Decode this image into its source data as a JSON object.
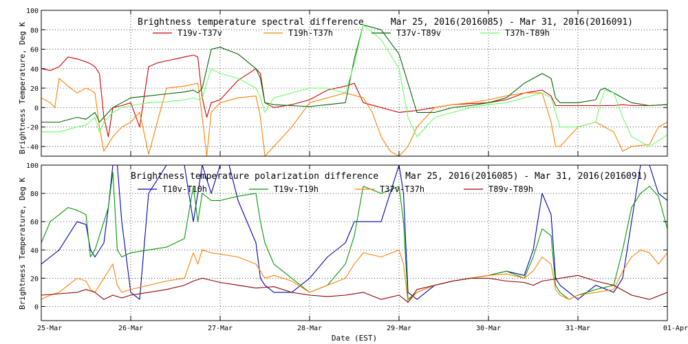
{
  "chart_data": [
    {
      "type": "line",
      "title": "Brightness temperature spectral difference     Mar 25, 2016(2016085) - Mar 31, 2016(2016091)",
      "ylabel": "Brightness Temperature, Deg K",
      "xlabel": "",
      "xlim": [
        0,
        7
      ],
      "ylim": [
        -50,
        100
      ],
      "yticks": [
        -40,
        -20,
        0,
        20,
        40,
        60,
        80,
        100
      ],
      "grid": true,
      "legend": "top",
      "series": [
        {
          "name": "T19v-T37v",
          "color": "#cc0000",
          "x": [
            0,
            0.1,
            0.2,
            0.3,
            0.4,
            0.5,
            0.55,
            0.6,
            0.65,
            0.7,
            0.75,
            0.8,
            0.9,
            1.0,
            1.1,
            1.2,
            1.3,
            1.4,
            1.5,
            1.6,
            1.7,
            1.75,
            1.8,
            1.85,
            1.9,
            2.0,
            2.2,
            2.4,
            2.45,
            2.5,
            2.6,
            2.8,
            3.0,
            3.2,
            3.4,
            3.5,
            3.6,
            3.8,
            4.0,
            4.2,
            4.4,
            4.6,
            4.8,
            5.0,
            5.2,
            5.4,
            5.6,
            5.7,
            5.75,
            5.8,
            6.0,
            6.2,
            6.4,
            6.5,
            6.6,
            6.8,
            7.0
          ],
          "y": [
            40,
            38,
            42,
            52,
            50,
            47,
            45,
            42,
            35,
            -10,
            -30,
            0,
            2,
            5,
            -20,
            42,
            46,
            48,
            50,
            52,
            54,
            52,
            10,
            -10,
            5,
            8,
            28,
            40,
            35,
            5,
            0,
            3,
            8,
            18,
            22,
            25,
            5,
            0,
            -5,
            -3,
            0,
            3,
            4,
            5,
            8,
            15,
            18,
            12,
            2,
            2,
            2,
            2,
            2,
            3,
            2,
            2,
            3
          ]
        },
        {
          "name": "T19h-T37h",
          "color": "#ff8000",
          "x": [
            0,
            0.1,
            0.15,
            0.2,
            0.3,
            0.4,
            0.5,
            0.55,
            0.6,
            0.65,
            0.7,
            0.8,
            0.9,
            1.0,
            1.1,
            1.2,
            1.4,
            1.6,
            1.7,
            1.75,
            1.8,
            1.85,
            1.9,
            2.0,
            2.2,
            2.4,
            2.45,
            2.5,
            2.6,
            2.7,
            2.8,
            3.0,
            3.2,
            3.4,
            3.6,
            3.7,
            3.8,
            3.9,
            4.0,
            4.1,
            4.2,
            4.4,
            4.6,
            4.8,
            5.0,
            5.2,
            5.4,
            5.6,
            5.7,
            5.75,
            5.8,
            6.0,
            6.2,
            6.4,
            6.5,
            6.6,
            6.8,
            6.9,
            7.0
          ],
          "y": [
            10,
            5,
            0,
            30,
            22,
            15,
            20,
            18,
            15,
            -20,
            -45,
            -30,
            -20,
            -15,
            -5,
            -48,
            20,
            22,
            24,
            25,
            -10,
            -50,
            -5,
            5,
            10,
            12,
            -10,
            -50,
            -40,
            -30,
            -20,
            5,
            10,
            15,
            10,
            -5,
            -30,
            -45,
            -50,
            -40,
            -20,
            0,
            3,
            5,
            8,
            12,
            15,
            15,
            -15,
            -40,
            -40,
            -20,
            -15,
            -25,
            -45,
            -40,
            -38,
            -20,
            -15
          ]
        },
        {
          "name": "T37v-T89v",
          "color": "#006400",
          "x": [
            0,
            0.2,
            0.4,
            0.5,
            0.6,
            0.65,
            0.7,
            0.8,
            0.9,
            1.0,
            1.2,
            1.4,
            1.6,
            1.7,
            1.75,
            1.8,
            1.9,
            2.0,
            2.2,
            2.4,
            2.45,
            2.5,
            2.6,
            2.8,
            3.0,
            3.2,
            3.4,
            3.5,
            3.6,
            3.8,
            4.0,
            4.2,
            4.4,
            4.6,
            4.8,
            5.0,
            5.2,
            5.4,
            5.6,
            5.7,
            5.75,
            5.8,
            6.0,
            6.2,
            6.25,
            6.3,
            6.4,
            6.6,
            6.8,
            7.0
          ],
          "y": [
            -15,
            -15,
            -10,
            -12,
            -5,
            -15,
            -10,
            0,
            5,
            10,
            12,
            14,
            16,
            18,
            15,
            20,
            60,
            62,
            55,
            40,
            30,
            5,
            3,
            2,
            1,
            3,
            5,
            50,
            85,
            80,
            55,
            -5,
            -5,
            0,
            2,
            5,
            10,
            25,
            35,
            30,
            10,
            5,
            5,
            8,
            18,
            20,
            15,
            5,
            2,
            3
          ]
        },
        {
          "name": "T37h-T89h",
          "color": "#66ff66",
          "x": [
            0,
            0.2,
            0.4,
            0.5,
            0.6,
            0.65,
            0.7,
            0.8,
            0.9,
            1.0,
            1.2,
            1.4,
            1.6,
            1.7,
            1.75,
            1.8,
            1.9,
            2.0,
            2.2,
            2.4,
            2.45,
            2.5,
            2.6,
            2.8,
            3.0,
            3.2,
            3.4,
            3.5,
            3.6,
            3.8,
            4.0,
            4.1,
            4.2,
            4.4,
            4.6,
            4.8,
            5.0,
            5.2,
            5.4,
            5.6,
            5.7,
            5.75,
            5.8,
            6.0,
            6.2,
            6.25,
            6.3,
            6.4,
            6.5,
            6.6,
            6.8,
            7.0
          ],
          "y": [
            -25,
            -25,
            -20,
            -18,
            -10,
            -25,
            -15,
            -5,
            0,
            2,
            5,
            6,
            8,
            10,
            8,
            10,
            40,
            35,
            30,
            20,
            10,
            -5,
            10,
            15,
            20,
            20,
            15,
            45,
            85,
            70,
            40,
            -10,
            -30,
            -10,
            -5,
            0,
            3,
            5,
            10,
            15,
            10,
            -5,
            -20,
            -20,
            -15,
            5,
            18,
            15,
            -10,
            -30,
            -40,
            -28
          ]
        }
      ]
    },
    {
      "type": "line",
      "title": "Brightness temperature polarization difference     Mar 25, 2016(2016085) - Mar 31, 2016(2016091)",
      "ylabel": "Brightness Temperature, Deg K",
      "xlabel": "Date (EST)",
      "xlim": [
        0,
        7
      ],
      "ylim": [
        -10,
        100
      ],
      "yticks": [
        0,
        20,
        40,
        60,
        80,
        100
      ],
      "xticks": [
        "25-Mar",
        "26-Mar",
        "27-Mar",
        "28-Mar",
        "29-Mar",
        "30-Mar",
        "31-Mar",
        "01-Apr"
      ],
      "grid": true,
      "legend": "top",
      "series": [
        {
          "name": "T10v-T10h",
          "color": "#0000aa",
          "x": [
            0,
            0.1,
            0.2,
            0.3,
            0.4,
            0.5,
            0.55,
            0.6,
            0.7,
            0.75,
            0.8,
            0.85,
            0.9,
            1.0,
            1.1,
            1.2,
            1.4,
            1.6,
            1.7,
            1.75,
            1.8,
            1.9,
            2.0,
            2.1,
            2.2,
            2.4,
            2.45,
            2.5,
            2.6,
            2.8,
            3.0,
            3.2,
            3.4,
            3.5,
            3.6,
            3.8,
            4.0,
            4.05,
            4.1,
            4.2,
            4.4,
            4.6,
            4.8,
            5.0,
            5.2,
            5.4,
            5.5,
            5.6,
            5.7,
            5.75,
            5.8,
            5.9,
            6.0,
            6.2,
            6.4,
            6.5,
            6.6,
            6.7,
            6.8,
            6.9,
            7.0
          ],
          "y": [
            30,
            35,
            40,
            50,
            60,
            58,
            40,
            35,
            45,
            70,
            100,
            100,
            60,
            10,
            5,
            80,
            100,
            100,
            60,
            80,
            100,
            80,
            100,
            100,
            75,
            45,
            20,
            15,
            10,
            10,
            20,
            35,
            45,
            60,
            60,
            60,
            100,
            80,
            10,
            5,
            15,
            18,
            20,
            22,
            25,
            22,
            40,
            80,
            65,
            20,
            15,
            10,
            5,
            15,
            10,
            20,
            60,
            100,
            100,
            80,
            75
          ]
        },
        {
          "name": "T19v-T19h",
          "color": "#009900",
          "x": [
            0,
            0.1,
            0.2,
            0.3,
            0.4,
            0.5,
            0.55,
            0.6,
            0.7,
            0.75,
            0.8,
            0.85,
            0.9,
            1.0,
            1.2,
            1.4,
            1.6,
            1.7,
            1.75,
            1.8,
            1.9,
            2.0,
            2.2,
            2.4,
            2.45,
            2.5,
            2.6,
            2.8,
            3.0,
            3.2,
            3.4,
            3.5,
            3.6,
            3.8,
            4.0,
            4.05,
            4.1,
            4.2,
            4.4,
            4.6,
            4.8,
            5.0,
            5.2,
            5.4,
            5.5,
            5.6,
            5.7,
            5.75,
            5.8,
            5.9,
            6.0,
            6.2,
            6.4,
            6.5,
            6.6,
            6.7,
            6.8,
            6.9,
            7.0
          ],
          "y": [
            45,
            60,
            65,
            70,
            68,
            65,
            35,
            40,
            60,
            70,
            95,
            40,
            35,
            38,
            40,
            42,
            48,
            85,
            60,
            80,
            75,
            75,
            78,
            80,
            60,
            45,
            30,
            20,
            10,
            15,
            30,
            50,
            85,
            80,
            85,
            60,
            5,
            10,
            15,
            18,
            20,
            22,
            25,
            20,
            35,
            55,
            50,
            15,
            10,
            5,
            8,
            12,
            15,
            40,
            70,
            80,
            85,
            78,
            55
          ]
        },
        {
          "name": "T37v-T37h",
          "color": "#ff8000",
          "x": [
            0,
            0.1,
            0.2,
            0.3,
            0.4,
            0.5,
            0.55,
            0.6,
            0.7,
            0.75,
            0.8,
            0.85,
            0.9,
            1.0,
            1.2,
            1.4,
            1.6,
            1.7,
            1.75,
            1.8,
            1.9,
            2.0,
            2.2,
            2.4,
            2.45,
            2.5,
            2.6,
            2.8,
            3.0,
            3.2,
            3.4,
            3.5,
            3.6,
            3.8,
            4.0,
            4.05,
            4.1,
            4.2,
            4.4,
            4.6,
            4.8,
            5.0,
            5.2,
            5.4,
            5.5,
            5.6,
            5.7,
            5.75,
            5.8,
            5.9,
            6.0,
            6.2,
            6.4,
            6.5,
            6.6,
            6.7,
            6.8,
            6.9,
            7.0
          ],
          "y": [
            5,
            8,
            10,
            15,
            20,
            18,
            12,
            10,
            20,
            25,
            30,
            15,
            10,
            12,
            15,
            18,
            20,
            38,
            30,
            40,
            38,
            37,
            35,
            30,
            25,
            20,
            22,
            18,
            10,
            15,
            20,
            30,
            38,
            35,
            40,
            30,
            3,
            10,
            15,
            18,
            20,
            22,
            23,
            20,
            25,
            35,
            30,
            12,
            8,
            5,
            8,
            10,
            12,
            25,
            35,
            40,
            38,
            30,
            38
          ]
        },
        {
          "name": "T89v-T89h",
          "color": "#8b0000",
          "x": [
            0,
            0.2,
            0.4,
            0.5,
            0.6,
            0.7,
            0.8,
            0.9,
            1.0,
            1.2,
            1.4,
            1.6,
            1.7,
            1.8,
            2.0,
            2.2,
            2.4,
            2.6,
            2.8,
            3.0,
            3.2,
            3.4,
            3.6,
            3.8,
            4.0,
            4.1,
            4.2,
            4.4,
            4.6,
            4.8,
            5.0,
            5.2,
            5.4,
            5.5,
            5.6,
            5.8,
            6.0,
            6.2,
            6.4,
            6.6,
            6.8,
            7.0
          ],
          "y": [
            8,
            9,
            10,
            12,
            10,
            5,
            8,
            6,
            8,
            10,
            12,
            15,
            18,
            20,
            17,
            15,
            13,
            14,
            10,
            8,
            7,
            8,
            10,
            5,
            8,
            3,
            12,
            15,
            18,
            20,
            20,
            18,
            17,
            15,
            18,
            20,
            22,
            18,
            15,
            8,
            5,
            10
          ]
        }
      ]
    }
  ]
}
